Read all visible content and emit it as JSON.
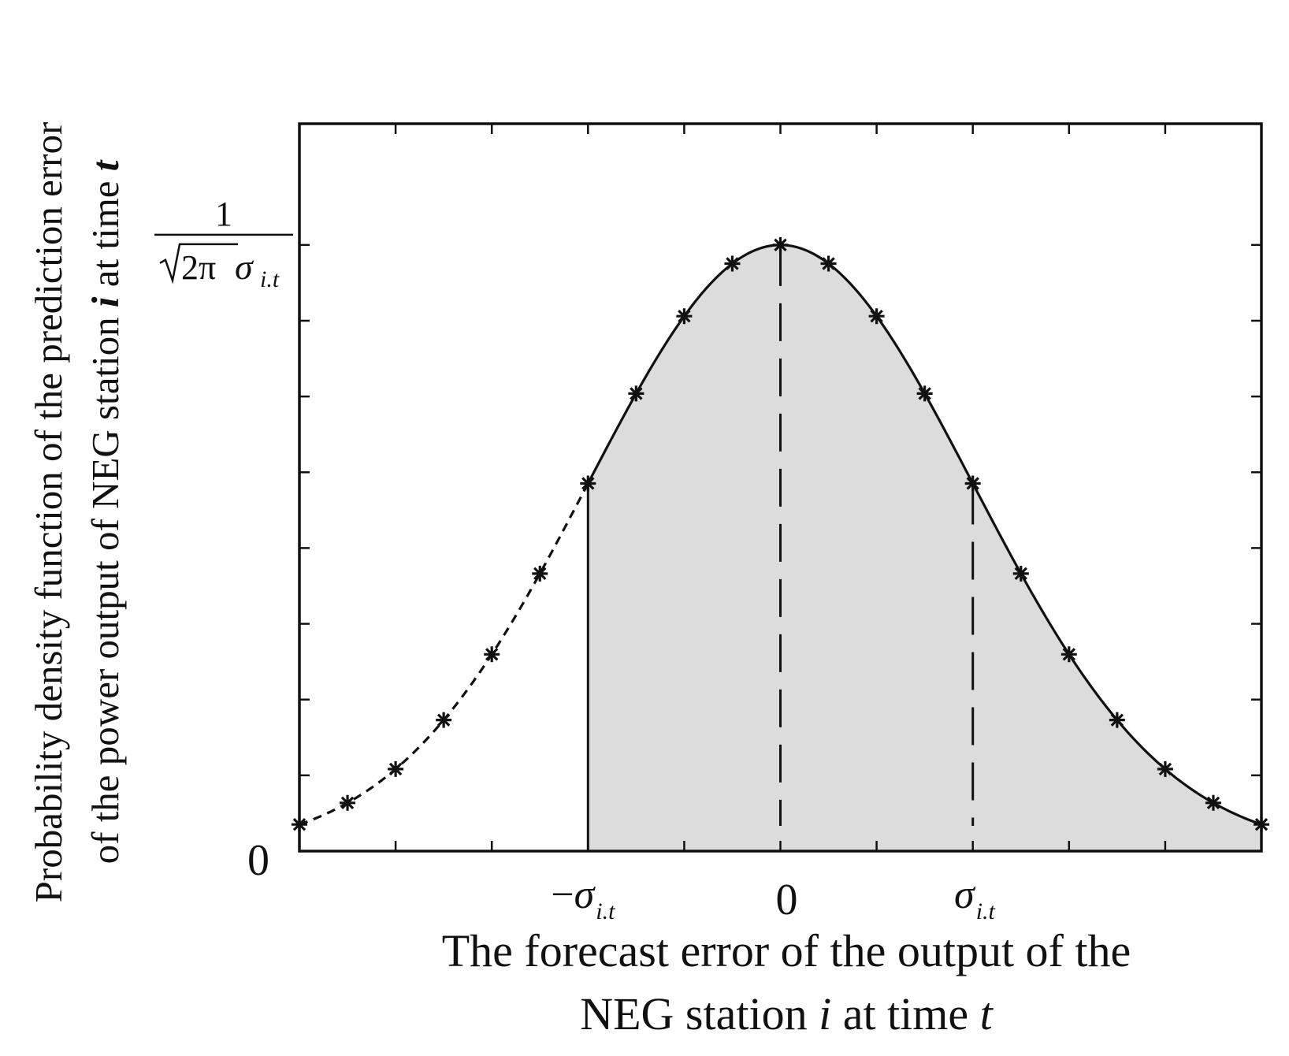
{
  "chart_data": {
    "type": "line",
    "title": "",
    "xlabel": {
      "line1": "The forecast error of the output of the",
      "line2_prefix": "NEG station ",
      "line2_var1": "i",
      "line2_mid": " at time ",
      "line2_var2": "t"
    },
    "ylabel": {
      "line1": "Probability density function of the prediction error",
      "line2_prefix": "of the power output of NEG station ",
      "line2_var1": "i",
      "line2_mid": " at time ",
      "line2_var2": "t"
    },
    "x_range": [
      -2.5,
      2.5
    ],
    "y_range": [
      0,
      1.2
    ],
    "y_ticks_count": 9,
    "x_ticks": [
      -2.5,
      -2.0,
      -1.5,
      -1.0,
      -0.5,
      0,
      0.5,
      1.0,
      1.5,
      2.0,
      2.5
    ],
    "x_tick_labels": {
      "neg_sigma": {
        "value": -1.0,
        "sign": "−",
        "symbol": "σ",
        "subscript": "i.t"
      },
      "zero": {
        "value": 0,
        "label": "0"
      },
      "pos_sigma": {
        "value": 1.0,
        "symbol": "σ",
        "subscript": "i.t"
      }
    },
    "y_tick_labels": {
      "zero": {
        "value": 0,
        "label": "0"
      },
      "peak": {
        "value": 1.0,
        "numerator": "1",
        "radicand": "2π",
        "symbol": "σ",
        "subscript": "i.t"
      }
    },
    "curve": {
      "name": "normalized Gaussian density",
      "function": "exp(-x^2/2)",
      "x_start": -2.5,
      "x_end": 2.5
    },
    "markers": {
      "symbol": "asterisk",
      "x": [
        -2.5,
        -2.25,
        -2.0,
        -1.75,
        -1.5,
        -1.25,
        -1.0,
        -0.75,
        -0.5,
        -0.25,
        0,
        0.25,
        0.5,
        0.75,
        1.0,
        1.25,
        1.5,
        1.75,
        2.0,
        2.25,
        2.5
      ]
    },
    "segments": [
      {
        "name": "left tail",
        "x_from": -2.5,
        "x_to": -1.0,
        "style": "dashed"
      },
      {
        "name": "shaded region",
        "x_from": -1.0,
        "x_to": 2.5,
        "style": "solid"
      }
    ],
    "shaded_region": {
      "x_from": -1.0,
      "x_to": 2.5,
      "color": "#dcdcdc"
    },
    "vertical_lines": [
      {
        "name": "minus-sigma",
        "x": -1.0,
        "style": "solid"
      },
      {
        "name": "mean",
        "x": 0,
        "style": "long-dash"
      },
      {
        "name": "plus-sigma",
        "x": 1.0,
        "style": "long-dash"
      }
    ],
    "colors": {
      "line": "#111111",
      "fill": "#dcdcdc",
      "background": "#ffffff"
    }
  }
}
